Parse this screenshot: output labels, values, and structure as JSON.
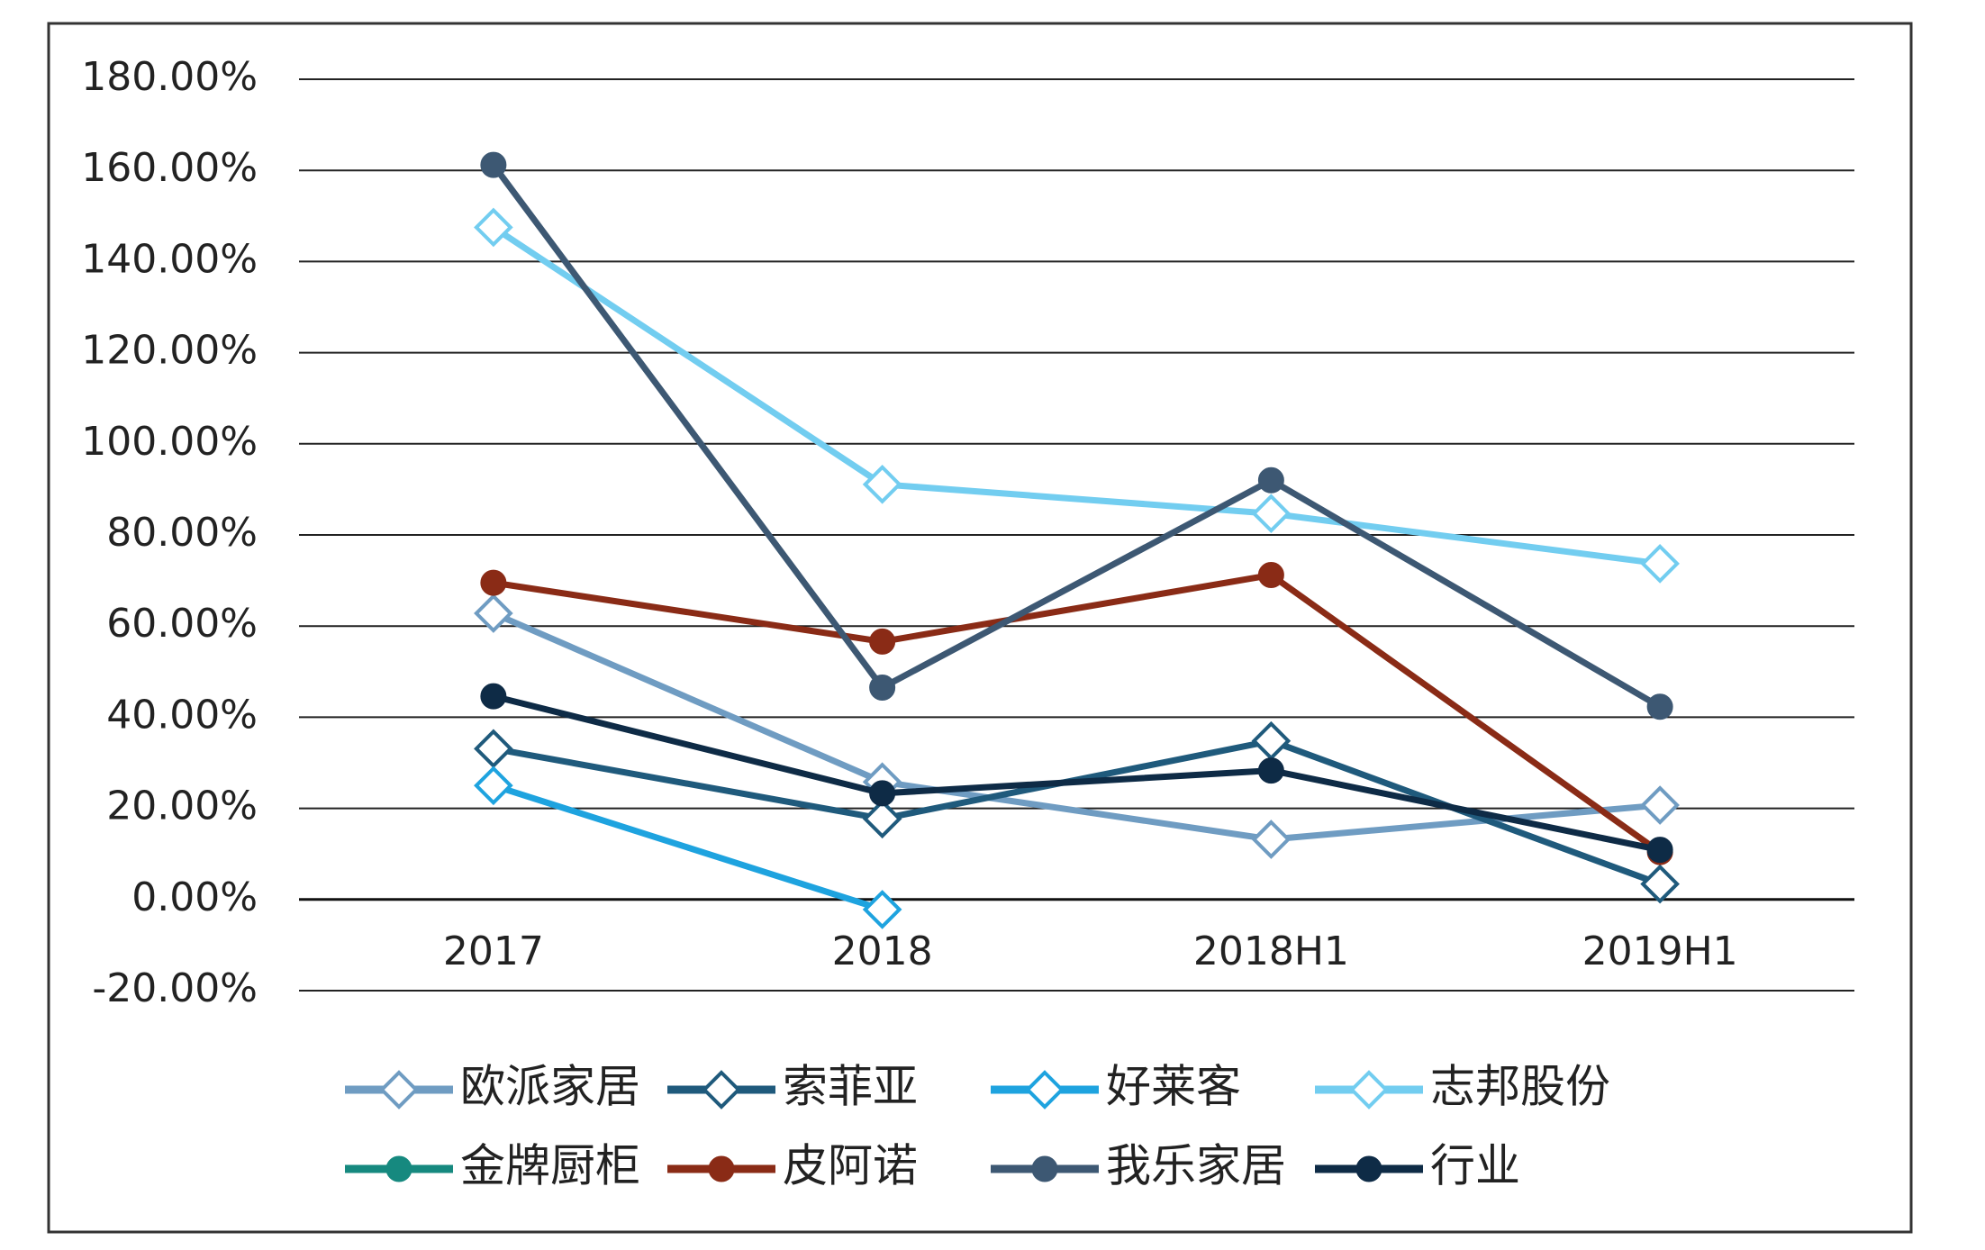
{
  "chart_data": {
    "type": "line",
    "categories": [
      "2017",
      "2018",
      "2018H1",
      "2019H1"
    ],
    "series": [
      {
        "name": "欧派家居",
        "color": "#6f9cc2",
        "marker": "diamond",
        "values": [
          62.8,
          25.8,
          13.2,
          20.7
        ]
      },
      {
        "name": "索菲亚",
        "color": "#1f5a7c",
        "marker": "diamond",
        "values": [
          33.1,
          17.7,
          34.8,
          3.4
        ]
      },
      {
        "name": "好莱客",
        "color": "#1ea3df",
        "marker": "diamond",
        "values": [
          25.0,
          -2.2,
          null,
          null
        ]
      },
      {
        "name": "志邦股份",
        "color": "#72cdf0",
        "marker": "diamond",
        "values": [
          147.5,
          91.1,
          84.7,
          73.7
        ]
      },
      {
        "name": "金牌厨柜",
        "color": "#16897f",
        "marker": "circle",
        "values": [
          null,
          null,
          null,
          null
        ]
      },
      {
        "name": "皮阿诺",
        "color": "#8a2b16",
        "marker": "circle",
        "values": [
          69.5,
          56.6,
          71.2,
          10.4
        ]
      },
      {
        "name": "我乐家居",
        "color": "#3d5873",
        "marker": "circle",
        "values": [
          161.2,
          46.5,
          92.0,
          42.3
        ]
      },
      {
        "name": "行业",
        "color": "#0e2b46",
        "marker": "circle",
        "values": [
          44.6,
          23.3,
          28.3,
          10.9
        ]
      }
    ],
    "ylim": [
      -20,
      180
    ],
    "yticks": [
      {
        "value": -20,
        "label": "-20.00%"
      },
      {
        "value": 0,
        "label": "0.00%"
      },
      {
        "value": 20,
        "label": "20.00%"
      },
      {
        "value": 40,
        "label": "40.00%"
      },
      {
        "value": 60,
        "label": "60.00%"
      },
      {
        "value": 80,
        "label": "80.00%"
      },
      {
        "value": 100,
        "label": "100.00%"
      },
      {
        "value": 120,
        "label": "120.00%"
      },
      {
        "value": 140,
        "label": "140.00%"
      },
      {
        "value": 160,
        "label": "160.00%"
      },
      {
        "value": 180,
        "label": "180.00%"
      }
    ],
    "grid": true,
    "legend": "bottom"
  }
}
